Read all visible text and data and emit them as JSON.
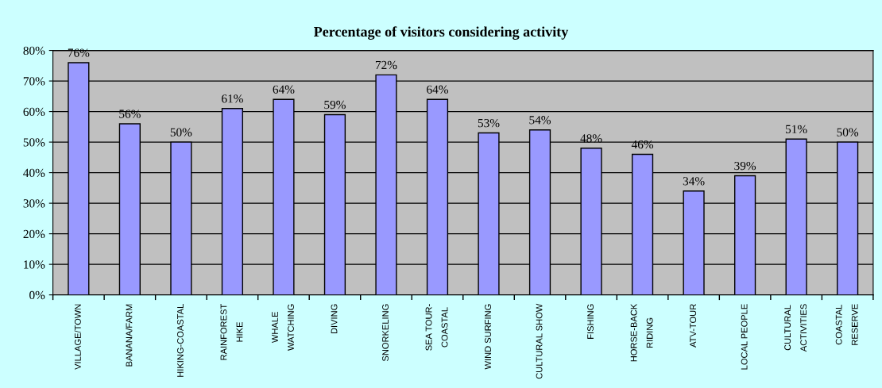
{
  "chart_data": {
    "type": "bar",
    "title": "Percentage of visitors considering activity",
    "categories": [
      "VILLAGE/TOWN",
      "BANANA/FARM",
      "HIKING-COASTAL",
      "RAINFOREST\nHIKE",
      "WHALE\nWATCHING",
      "DIVING",
      "SNORKELING",
      "SEA TOUR-\nCOASTAL",
      "WIND SURFING",
      "CULTURAL SHOW",
      "FISHING",
      "HORSE-BACK\nRIDING",
      "ATV-TOUR",
      "LOCAL PEOPLE",
      "CULTURAL\nACTIVITIES",
      "COASTAL\nRESERVE"
    ],
    "values": [
      76,
      56,
      50,
      61,
      64,
      59,
      72,
      64,
      53,
      54,
      48,
      46,
      34,
      39,
      51,
      50
    ],
    "value_labels": [
      "76%",
      "56%",
      "50%",
      "61%",
      "64%",
      "59%",
      "72%",
      "64%",
      "53%",
      "54%",
      "48%",
      "46%",
      "34%",
      "39%",
      "51%",
      "50%"
    ],
    "color": "#9999ff",
    "ylim": [
      0,
      80
    ],
    "yticks": [
      {
        "value": 0,
        "label": "0%"
      },
      {
        "value": 10,
        "label": "10%"
      },
      {
        "value": 20,
        "label": "20%"
      },
      {
        "value": 30,
        "label": "30%"
      },
      {
        "value": 40,
        "label": "40%"
      },
      {
        "value": 50,
        "label": "50%"
      },
      {
        "value": 60,
        "label": "60%"
      },
      {
        "value": 70,
        "label": "70%"
      },
      {
        "value": 80,
        "label": "80%"
      }
    ],
    "grid": "y",
    "legend": false
  }
}
